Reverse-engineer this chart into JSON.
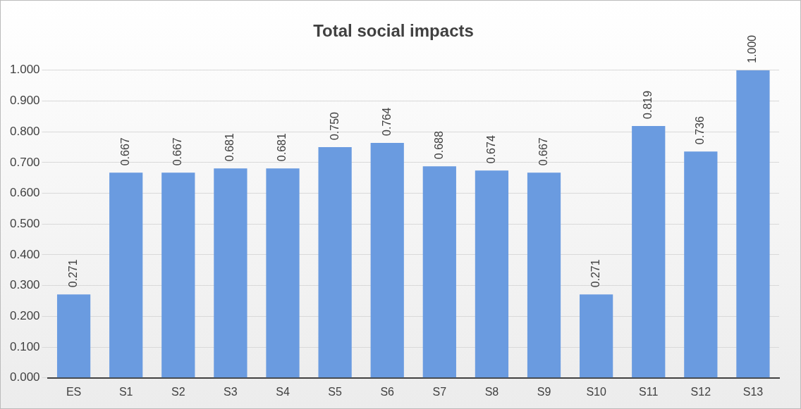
{
  "chart_data": {
    "type": "bar",
    "title": "Total social impacts",
    "categories": [
      "ES",
      "S1",
      "S2",
      "S3",
      "S4",
      "S5",
      "S6",
      "S7",
      "S8",
      "S9",
      "S10",
      "S11",
      "S12",
      "S13"
    ],
    "values": [
      0.271,
      0.667,
      0.667,
      0.681,
      0.681,
      0.75,
      0.764,
      0.688,
      0.674,
      0.667,
      0.271,
      0.819,
      0.736,
      1.0
    ],
    "value_labels": [
      "0.271",
      "0.667",
      "0.667",
      "0.681",
      "0.681",
      "0.750",
      "0.764",
      "0.688",
      "0.674",
      "0.667",
      "0.271",
      "0.819",
      "0.736",
      "1.000"
    ],
    "color": "#6a9be0",
    "ylim": [
      0,
      1
    ],
    "yticks": [
      {
        "value": 0,
        "label": "0.000"
      },
      {
        "value": 0.1,
        "label": "0.100"
      },
      {
        "value": 0.2,
        "label": "0.200"
      },
      {
        "value": 0.3,
        "label": "0.300"
      },
      {
        "value": 0.4,
        "label": "0.400"
      },
      {
        "value": 0.5,
        "label": "0.500"
      },
      {
        "value": 0.6,
        "label": "0.600"
      },
      {
        "value": 0.7,
        "label": "0.700"
      },
      {
        "value": 0.8,
        "label": "0.800"
      },
      {
        "value": 0.9,
        "label": "0.900"
      },
      {
        "value": 1,
        "label": "1.000"
      }
    ],
    "grid": "y",
    "legend": false
  }
}
